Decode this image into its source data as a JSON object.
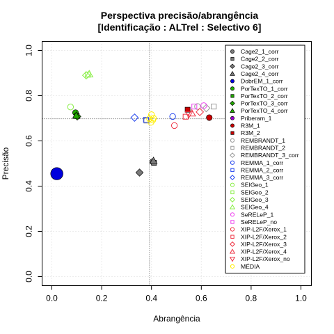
{
  "chart_data": {
    "type": "scatter",
    "title": "Perspectiva precisão/abrangência",
    "subtitle": "[Identificação : ALTrel : Selectivo 6]",
    "xlabel": "Abrangência",
    "ylabel": "Precisão",
    "xlim": [
      0,
      1
    ],
    "ylim": [
      0,
      1
    ],
    "xticks": [
      0,
      0.2,
      0.4,
      0.6,
      0.8,
      1
    ],
    "yticks": [
      0,
      0.2,
      0.4,
      0.6,
      0.8,
      1
    ],
    "xtick_labels": [
      "0.0",
      "0.2",
      "0.4",
      "0.6",
      "0.8",
      "1.0"
    ],
    "ytick_labels": [
      "0.0",
      "0.2",
      "0.4",
      "0.6",
      "0.8",
      "1.0"
    ],
    "grid": true,
    "legend_position": "top-right",
    "reference_lines": {
      "x": 0.392,
      "y": 0.698
    },
    "series": [
      {
        "name": "Cage2_1_corr",
        "shape": "circle",
        "filled": true,
        "color": "#7a7a7a",
        "points": [
          [
            0.405,
            0.508
          ]
        ]
      },
      {
        "name": "Cage2_2_corr",
        "shape": "square",
        "filled": true,
        "color": "#7a7a7a",
        "points": [
          [
            0.41,
            0.503
          ]
        ]
      },
      {
        "name": "Cage2_3_corr",
        "shape": "diamond",
        "filled": true,
        "color": "#7a7a7a",
        "points": [
          [
            0.352,
            0.46
          ]
        ]
      },
      {
        "name": "Cage2_4_corr",
        "shape": "triangle",
        "filled": true,
        "color": "#7a7a7a",
        "points": [
          [
            0.408,
            0.512
          ]
        ]
      },
      {
        "name": "DobrEM_1_corr",
        "shape": "circle",
        "filled": true,
        "color": "#0000dd",
        "size": 2.1,
        "points": [
          [
            0.02,
            0.455
          ]
        ]
      },
      {
        "name": "PorTexTO_1_corr",
        "shape": "circle",
        "filled": true,
        "color": "#22aa00",
        "points": [
          [
            0.095,
            0.725
          ]
        ]
      },
      {
        "name": "PorTexTO_2_corr",
        "shape": "square",
        "filled": true,
        "color": "#22aa00",
        "points": [
          [
            0.1,
            0.71
          ]
        ]
      },
      {
        "name": "PorTexTO_3_corr",
        "shape": "diamond",
        "filled": true,
        "color": "#22aa00",
        "points": [
          [
            0.102,
            0.708
          ]
        ]
      },
      {
        "name": "PorTexTO_4_corr",
        "shape": "triangle",
        "filled": true,
        "color": "#22aa00",
        "points": [
          [
            0.098,
            0.712
          ]
        ]
      },
      {
        "name": "Priberam_1",
        "shape": "circle",
        "filled": true,
        "color": "#9900cc",
        "points": []
      },
      {
        "name": "R3M_1",
        "shape": "circle",
        "filled": true,
        "color": "#cc0000",
        "points": [
          [
            0.632,
            0.703
          ]
        ]
      },
      {
        "name": "R3M_2",
        "shape": "square",
        "filled": true,
        "color": "#cc0000",
        "points": [
          [
            0.545,
            0.738
          ]
        ]
      },
      {
        "name": "REMBRANDT_1",
        "shape": "circle",
        "filled": false,
        "color": "#999999",
        "points": [
          [
            0.585,
            0.752
          ]
        ]
      },
      {
        "name": "REMBRANDT_2",
        "shape": "square",
        "filled": false,
        "color": "#999999",
        "points": [
          [
            0.38,
            0.69
          ],
          [
            0.65,
            0.752
          ]
        ]
      },
      {
        "name": "REMBRANDT_3_corr",
        "shape": "diamond",
        "filled": false,
        "color": "#999999",
        "points": [
          [
            0.62,
            0.745
          ]
        ]
      },
      {
        "name": "REMMA_1_corr",
        "shape": "circle",
        "filled": false,
        "color": "#2244ee",
        "points": [
          [
            0.485,
            0.708
          ]
        ]
      },
      {
        "name": "REMMA_2_corr",
        "shape": "square",
        "filled": false,
        "color": "#2244ee",
        "points": [
          [
            0.378,
            0.693
          ]
        ]
      },
      {
        "name": "REMMA_3_corr",
        "shape": "diamond",
        "filled": false,
        "color": "#2244ee",
        "points": [
          [
            0.332,
            0.703
          ]
        ]
      },
      {
        "name": "SEIGeo_1",
        "shape": "circle",
        "filled": false,
        "color": "#88ee44",
        "points": [
          [
            0.075,
            0.75
          ]
        ]
      },
      {
        "name": "SEIGeo_2",
        "shape": "square",
        "filled": false,
        "color": "#88ee44",
        "points": [
          [
            0.145,
            0.893
          ]
        ]
      },
      {
        "name": "SEIGeo_3",
        "shape": "diamond",
        "filled": false,
        "color": "#88ee44",
        "points": [
          [
            0.138,
            0.89
          ]
        ]
      },
      {
        "name": "SEIGeo_4",
        "shape": "triangle",
        "filled": false,
        "color": "#88ee44",
        "points": [
          [
            0.15,
            0.895
          ]
        ]
      },
      {
        "name": "SeRELeP_1",
        "shape": "circle",
        "filled": false,
        "color": "#ee44ee",
        "points": [
          [
            0.61,
            0.756
          ]
        ]
      },
      {
        "name": "SeRELeP_no",
        "shape": "square",
        "filled": false,
        "color": "#ee44ee",
        "points": [
          [
            0.572,
            0.752
          ]
        ]
      },
      {
        "name": "XIP-L2F/Xerox_1",
        "shape": "circle",
        "filled": false,
        "color": "#ee3344",
        "points": [
          [
            0.492,
            0.668
          ]
        ]
      },
      {
        "name": "XIP-L2F/Xerox_2",
        "shape": "square",
        "filled": false,
        "color": "#ee3344",
        "points": [
          [
            0.537,
            0.707
          ]
        ]
      },
      {
        "name": "XIP-L2F/Xerox_3",
        "shape": "diamond",
        "filled": false,
        "color": "#ee3344",
        "points": [
          [
            0.594,
            0.728
          ]
        ]
      },
      {
        "name": "XIP-L2F/Xerox_4",
        "shape": "triangle",
        "filled": false,
        "color": "#ee3344",
        "points": [
          [
            0.562,
            0.722
          ]
        ]
      },
      {
        "name": "XIP-L2F/Xerox_no",
        "shape": "triangle-down",
        "filled": false,
        "color": "#ee3344",
        "points": [
          [
            0.55,
            0.718
          ]
        ]
      },
      {
        "name": "MÉDIA",
        "shape": "circle",
        "filled": false,
        "color": "#ffee00",
        "points": [
          [
            0.392,
            0.698
          ],
          [
            0.4,
            0.716
          ],
          [
            0.405,
            0.692
          ],
          [
            0.398,
            0.682
          ],
          [
            0.408,
            0.7
          ]
        ]
      }
    ]
  }
}
